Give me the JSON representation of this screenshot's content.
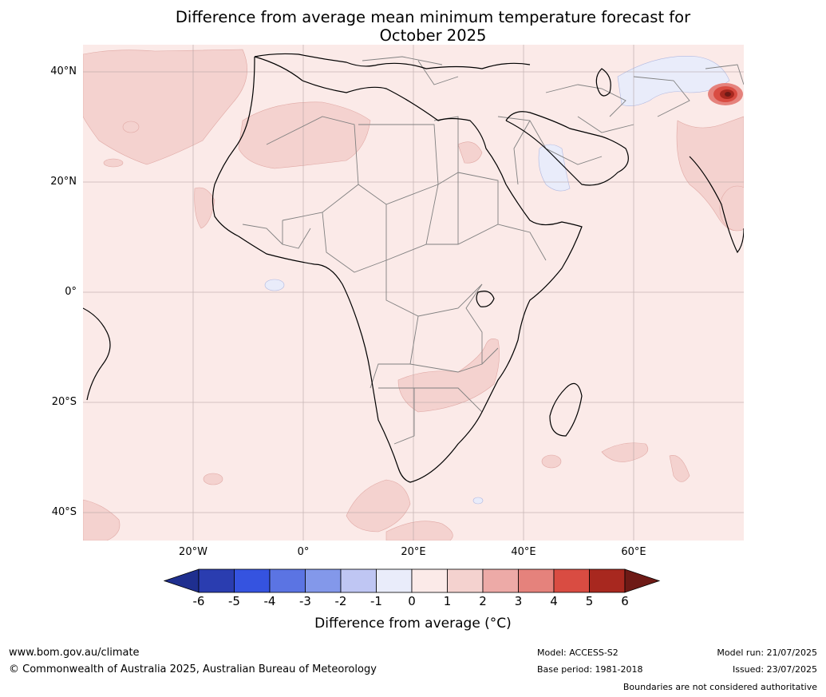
{
  "title": {
    "line1": "Difference from average mean minimum temperature forecast for",
    "line2": "October 2025"
  },
  "map": {
    "region": "Africa",
    "lat_labels": [
      "40°N",
      "20°N",
      "0°",
      "20°S",
      "40°S"
    ],
    "lon_labels": [
      "20°W",
      "0°",
      "20°E",
      "40°E",
      "60°E"
    ],
    "background_class_color": "#fbeae8",
    "warm_class_color": "#f4d2cf",
    "cool_class_color": "#e9ecfa",
    "hotspot_color": "#c0302a",
    "coastline_color": "#000000",
    "border_color": "#808080",
    "gridline_color": "#999999"
  },
  "colorbar": {
    "ticks": [
      "-6",
      "-5",
      "-4",
      "-3",
      "-2",
      "-1",
      "0",
      "1",
      "2",
      "3",
      "4",
      "5",
      "6"
    ],
    "colors": [
      "#1f2f8f",
      "#2a3db0",
      "#3553e0",
      "#5b74e3",
      "#8398ea",
      "#bfc6f3",
      "#e9ecfa",
      "#fbeae8",
      "#f4d2cf",
      "#edaaa7",
      "#e5827c",
      "#d94c42",
      "#a8281f",
      "#6e1a16"
    ],
    "label": "Difference from average (°C)"
  },
  "footer": {
    "website": "www.bom.gov.au/climate",
    "copyright": "© Commonwealth of Australia 2025, Australian Bureau of Meteorology",
    "model": "Model: ACCESS-S2",
    "base_period": "Base period: 1981-2018",
    "model_run": "Model run: 21/07/2025",
    "issued": "Issued: 23/07/2025",
    "disclaimer": "Boundaries are not considered authoritative"
  }
}
